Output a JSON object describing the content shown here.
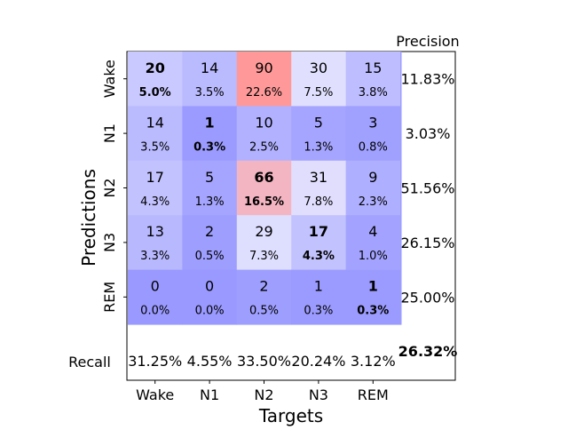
{
  "chart_data": {
    "type": "heatmap",
    "xlabel": "Targets",
    "ylabel": "Predictions",
    "categories": [
      "Wake",
      "N1",
      "N2",
      "N3",
      "REM"
    ],
    "counts": [
      [
        20,
        14,
        90,
        30,
        15
      ],
      [
        14,
        1,
        10,
        5,
        3
      ],
      [
        17,
        5,
        66,
        31,
        9
      ],
      [
        13,
        2,
        29,
        17,
        4
      ],
      [
        0,
        0,
        2,
        1,
        1
      ]
    ],
    "percentages": [
      [
        "5.0%",
        "3.5%",
        "22.6%",
        "7.5%",
        "3.8%"
      ],
      [
        "3.5%",
        "0.3%",
        "2.5%",
        "1.3%",
        "0.8%"
      ],
      [
        "4.3%",
        "1.3%",
        "16.5%",
        "7.8%",
        "2.3%"
      ],
      [
        "3.3%",
        "0.5%",
        "7.3%",
        "4.3%",
        "1.0%"
      ],
      [
        "0.0%",
        "0.0%",
        "0.5%",
        "0.3%",
        "0.3%"
      ]
    ],
    "precision_label": "Precision",
    "precision": [
      "11.83%",
      "3.03%",
      "51.56%",
      "26.15%",
      "25.00%"
    ],
    "recall_label": "Recall",
    "recall": [
      "31.25%",
      "4.55%",
      "33.50%",
      "20.24%",
      "3.12%"
    ],
    "overall_accuracy": "26.32%",
    "colors": {
      "cell_low": "#9999ff",
      "cell_mid": "#e0e0ff",
      "cell_high": "#ff9999",
      "side_panel": "#9e9eff"
    }
  }
}
